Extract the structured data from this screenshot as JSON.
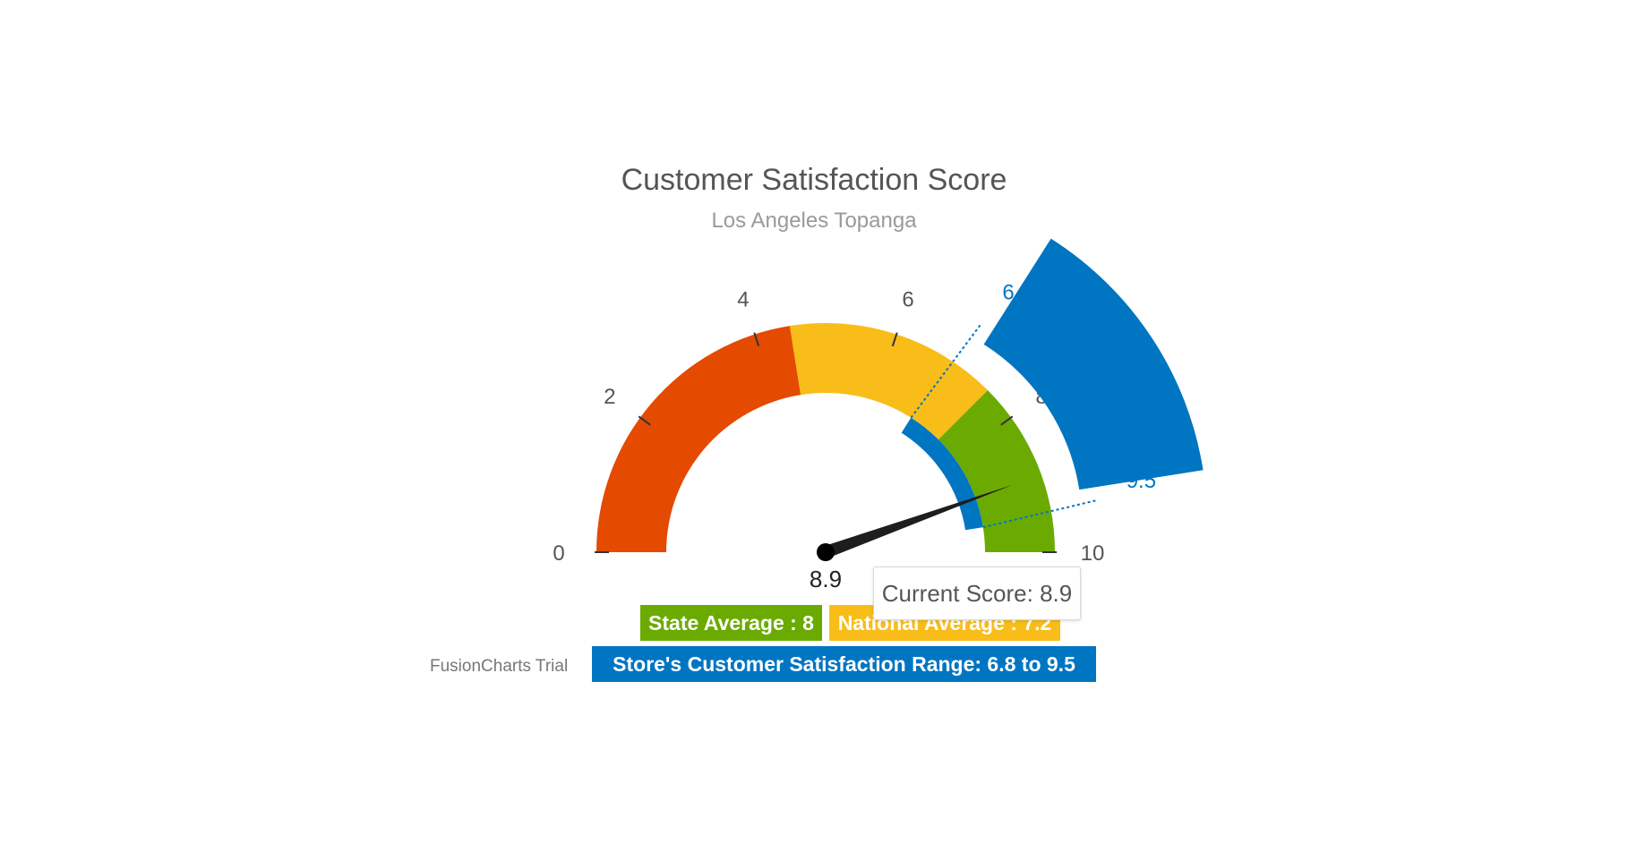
{
  "chart_data": {
    "type": "angular-gauge",
    "title": "Customer Satisfaction Score",
    "subtitle": "Los Angeles Topanga",
    "lower_limit": 0,
    "upper_limit": 10,
    "tick_labels": [
      "0",
      "2",
      "4",
      "6",
      "8",
      "10"
    ],
    "tick_values": [
      0,
      2,
      4,
      6,
      8,
      10
    ],
    "color_ranges": [
      {
        "min": 0,
        "max": 4.5,
        "color": "#e44a00"
      },
      {
        "min": 4.5,
        "max": 7.5,
        "color": "#f8bd19"
      },
      {
        "min": 7.5,
        "max": 10,
        "color": "#6baa01"
      }
    ],
    "dial_value": 8.9,
    "dial_value_label": "8.9",
    "trend_range": {
      "min": 6.8,
      "max": 9.5,
      "color": "#0075c2"
    },
    "trend_range_labels": [
      "6.8",
      "9.5"
    ],
    "tooltip": "Current Score: 8.9"
  },
  "legend": {
    "state_average": {
      "text": "State Average : 8",
      "color": "#6baa01"
    },
    "national_average": {
      "text": "National Average : 7.2",
      "color": "#f8bd19"
    },
    "store_range": {
      "text": "Store's Customer Satisfaction Range: 6.8 to 9.5",
      "color": "#0075c2"
    }
  },
  "watermark": "FusionCharts Trial"
}
